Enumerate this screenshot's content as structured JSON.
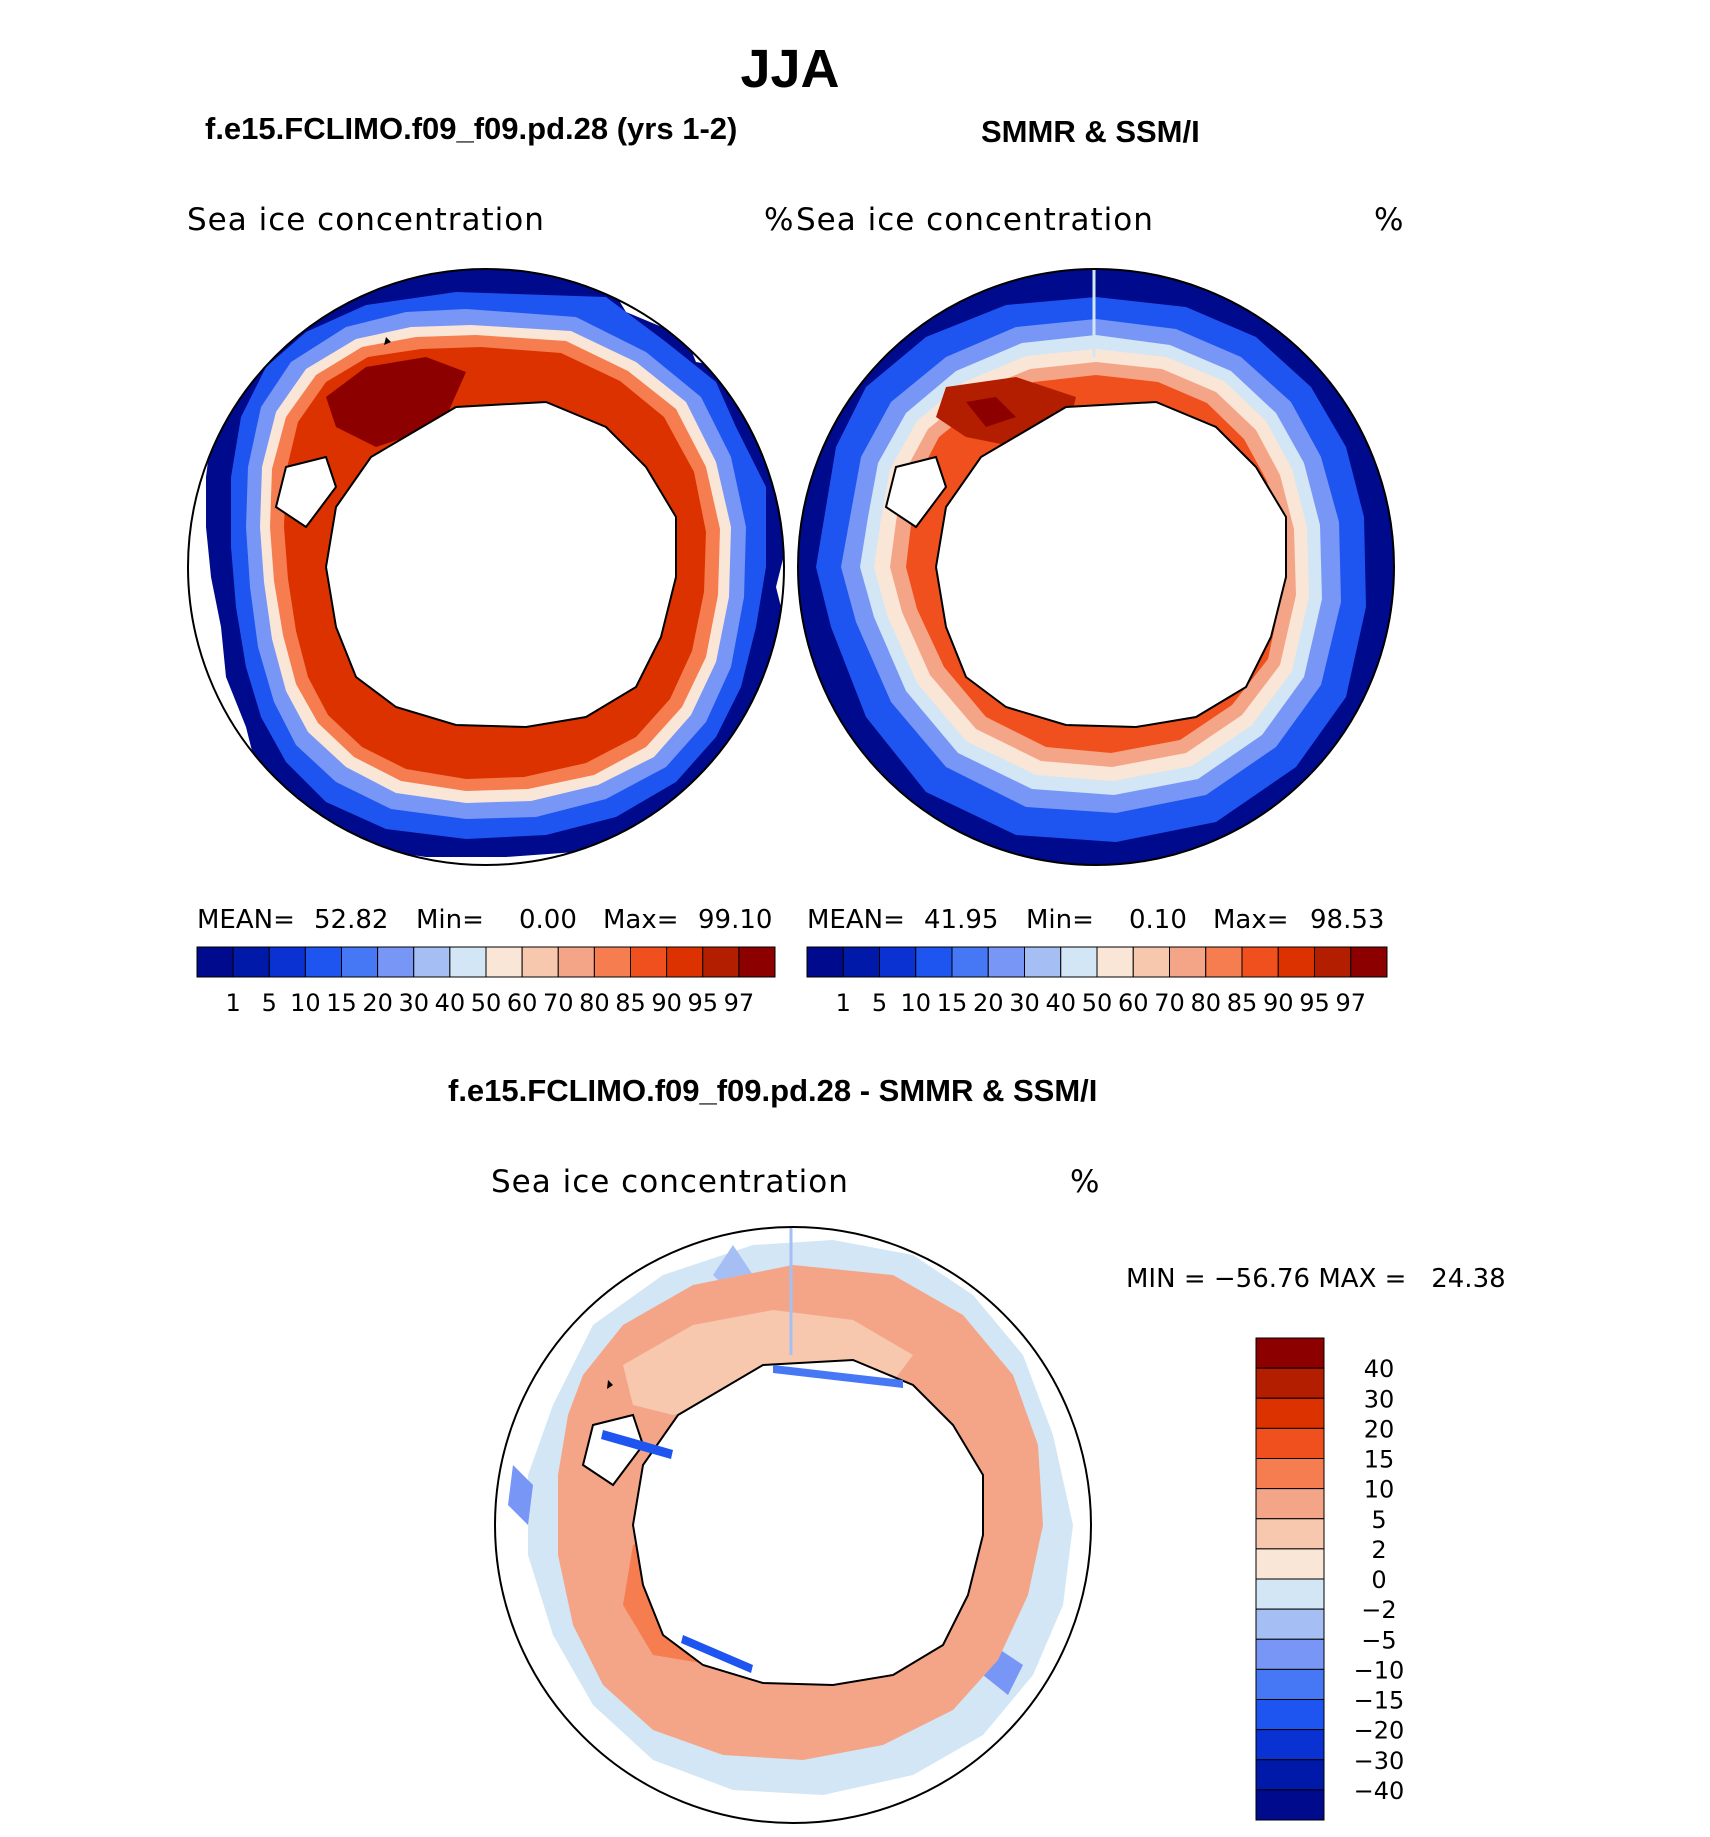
{
  "title": "JJA",
  "panels": {
    "model": {
      "title": "f.e15.FCLIMO.f09_f09.pd.28 (yrs 1-2)",
      "variable": "Sea ice concentration",
      "unit": "%",
      "mean_label": "MEAN=",
      "mean_value": "52.82",
      "min_label": "Min=",
      "min_value": "0.00",
      "max_label": "Max=",
      "max_value": "99.10"
    },
    "obs": {
      "title": "SMMR & SSM/I",
      "variable": "Sea ice concentration",
      "unit": "%",
      "mean_label": "MEAN=",
      "mean_value": "41.95",
      "min_label": "Min=",
      "min_value": "0.10",
      "max_label": "Max=",
      "max_value": "98.53"
    },
    "diff": {
      "title": "f.e15.FCLIMO.f09_f09.pd.28 - SMMR & SSM/I",
      "variable": "Sea ice concentration",
      "unit": "%",
      "minmax_text": "MIN = −56.76 MAX =   24.38"
    }
  },
  "colorbar_abs": {
    "labels": [
      "1",
      "5",
      "10",
      "15",
      "20",
      "30",
      "40",
      "50",
      "60",
      "70",
      "80",
      "85",
      "90",
      "95",
      "97"
    ],
    "colors": [
      "#000a8c",
      "#0019a8",
      "#0a32d2",
      "#1e55f0",
      "#4678f5",
      "#7896f5",
      "#a5bff5",
      "#d2e6f5",
      "#fae6d7",
      "#f8c8ae",
      "#f5a587",
      "#f57d50",
      "#f0501e",
      "#dc3200",
      "#b41e00",
      "#8c0000"
    ]
  },
  "colorbar_diff": {
    "labels": [
      "40",
      "30",
      "20",
      "15",
      "10",
      "5",
      "2",
      "0",
      "−2",
      "−5",
      "−10",
      "−15",
      "−20",
      "−30",
      "−40"
    ],
    "colors": [
      "#8c0000",
      "#b41e00",
      "#dc3200",
      "#f0501e",
      "#f57d50",
      "#f5a587",
      "#f8c8ae",
      "#fae6d7",
      "#d2e6f5",
      "#a5bff5",
      "#7896f5",
      "#4678f5",
      "#1e55f0",
      "#0a32d2",
      "#0019a8",
      "#000a8c"
    ]
  }
}
